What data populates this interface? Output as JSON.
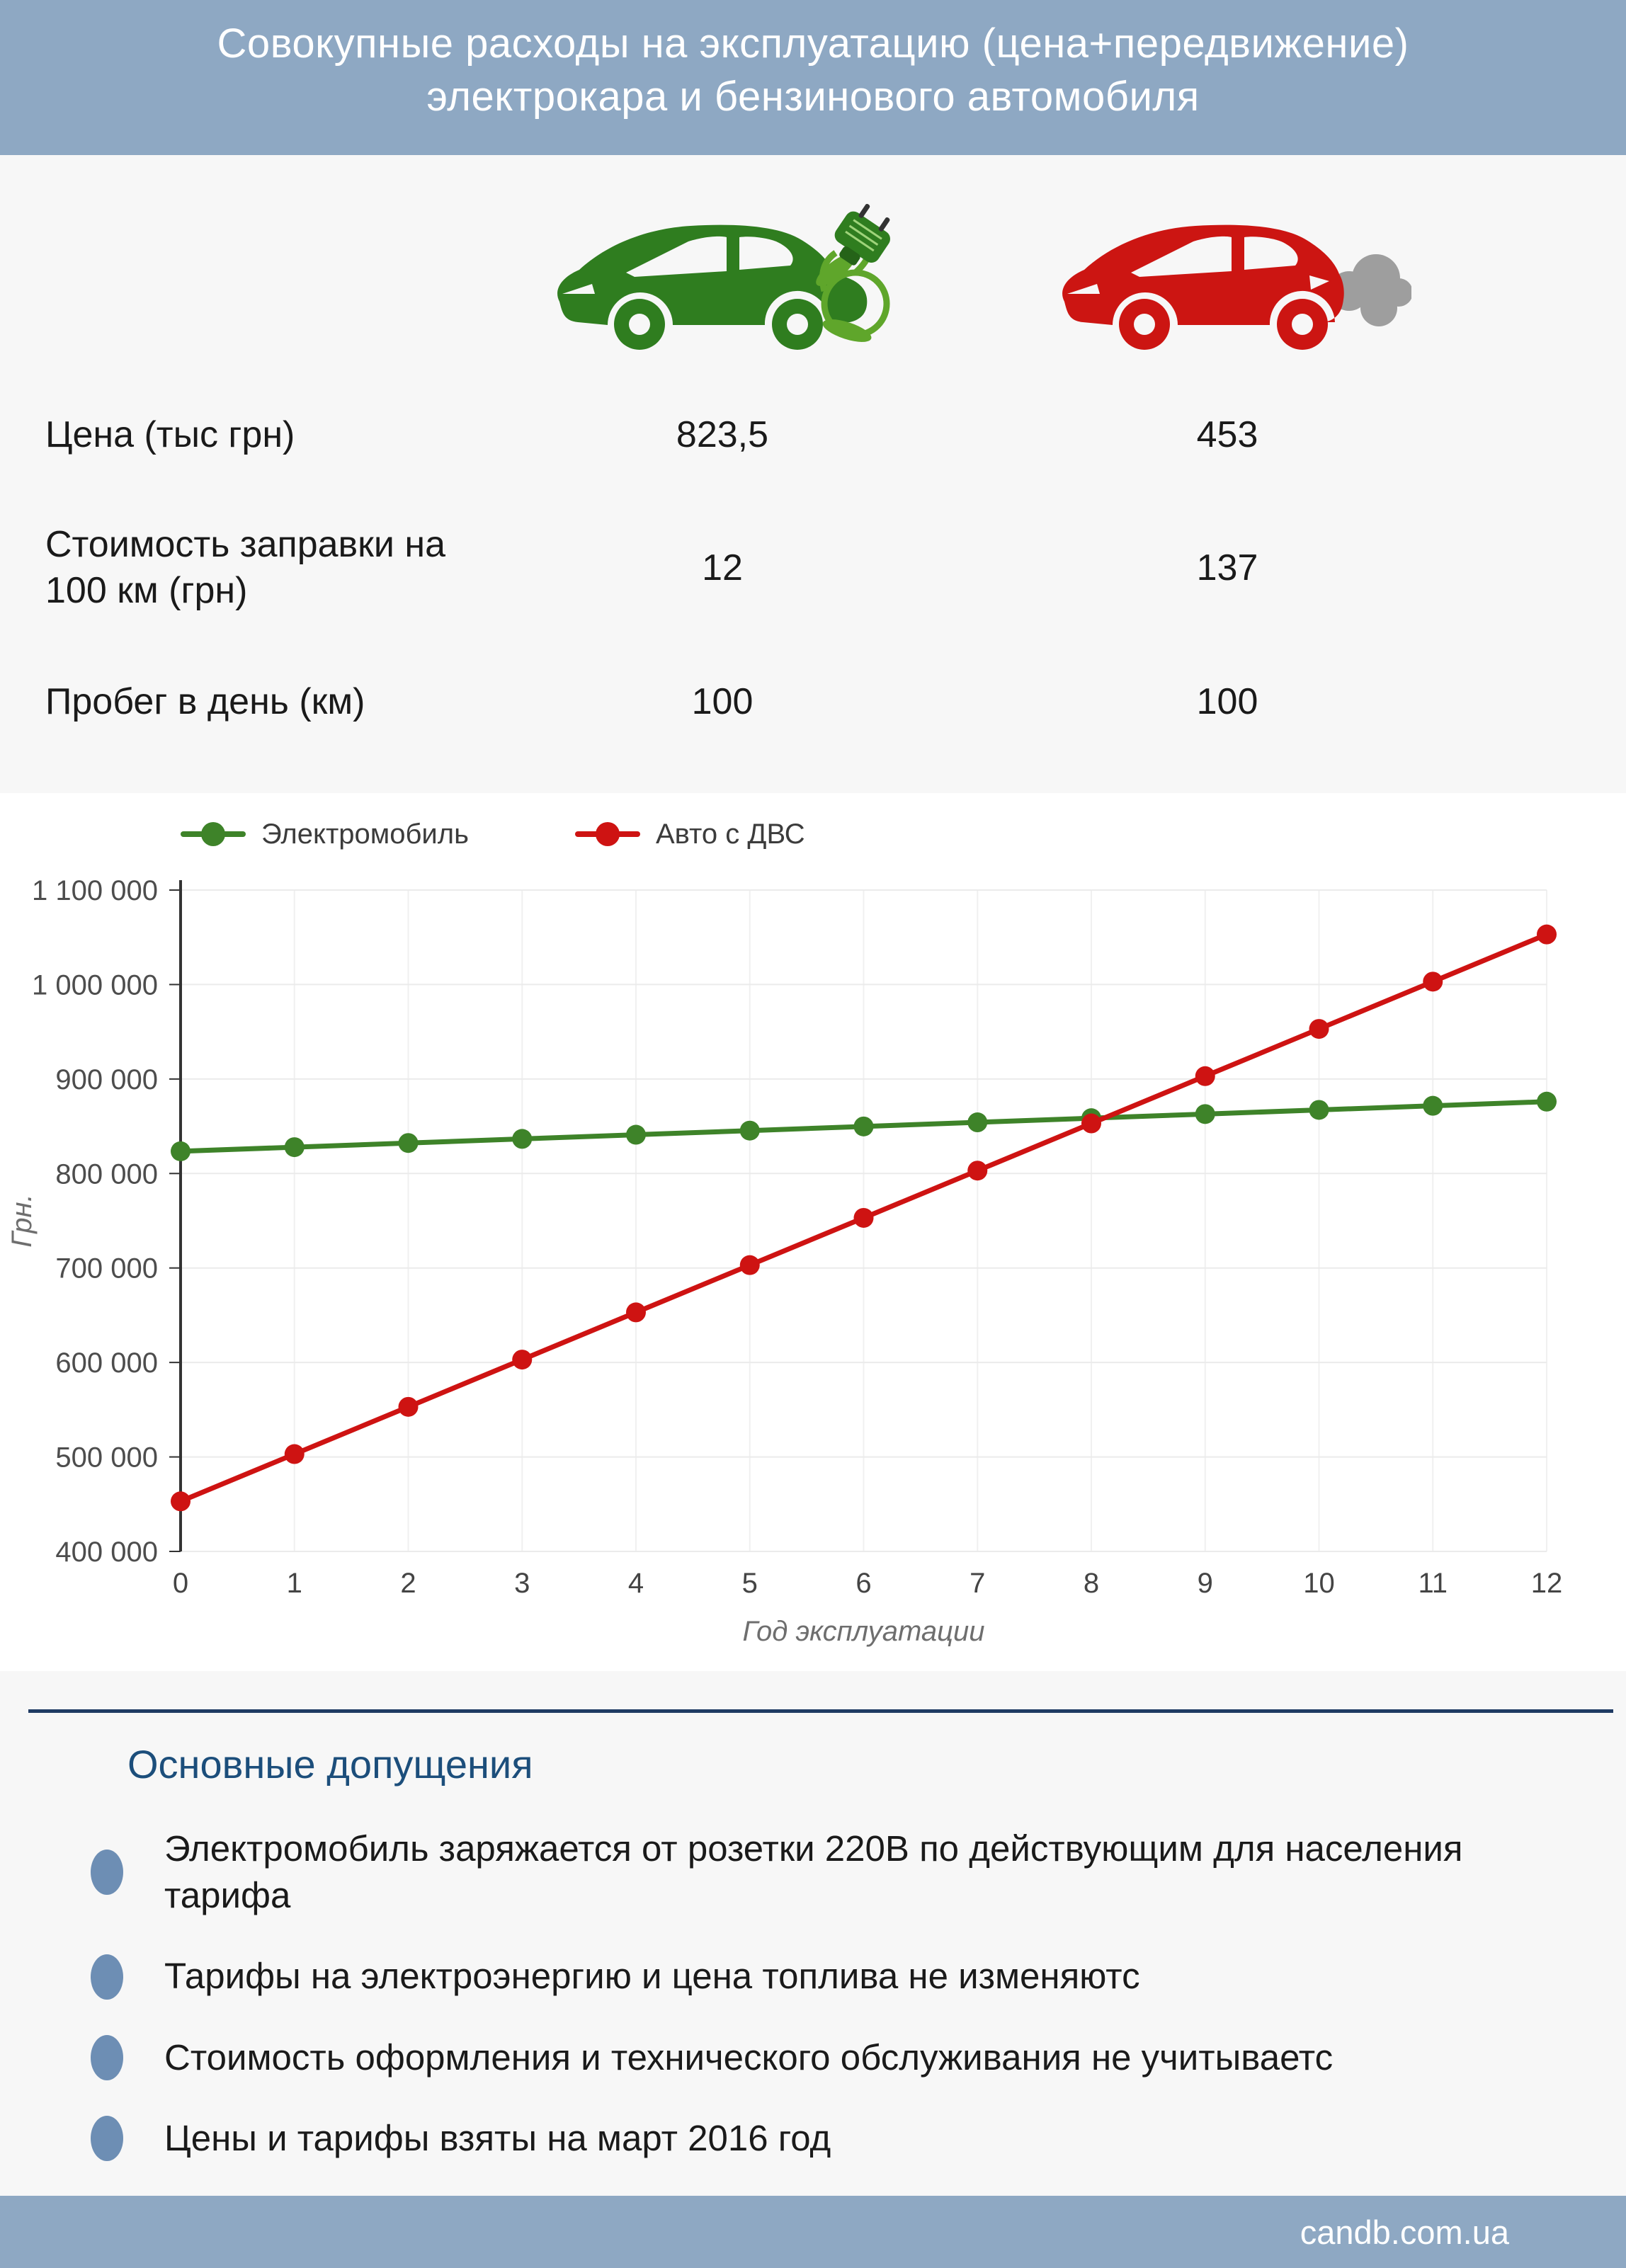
{
  "header": {
    "title_line1": "Совокупные расходы на эксплуатацию (цена+передвижение)",
    "title_line2": "электрокара и бензинового автомобиля"
  },
  "icons": {
    "electric": "electric-car-plug-icon",
    "petrol": "petrol-car-smoke-icon"
  },
  "comparison": {
    "rows": [
      {
        "label": "Цена (тыс грн)",
        "electric": "823,5",
        "petrol": "453"
      },
      {
        "label": "Стоимость заправки на 100 км (грн)",
        "electric": "12",
        "petrol": "137"
      },
      {
        "label": "Пробег в день (км)",
        "electric": "100",
        "petrol": "100"
      }
    ]
  },
  "chart_data": {
    "type": "line",
    "x": [
      0,
      1,
      2,
      3,
      4,
      5,
      6,
      7,
      8,
      9,
      10,
      11,
      12
    ],
    "series": [
      {
        "name": "Электромобиль",
        "color": "#3e8329",
        "values": [
          823500,
          827880,
          832260,
          836640,
          841020,
          845400,
          849780,
          854160,
          858540,
          862920,
          867300,
          871680,
          876060
        ]
      },
      {
        "name": "Авто с ДВС",
        "color": "#ce1312",
        "values": [
          453000,
          503005,
          553010,
          603015,
          653020,
          703025,
          753030,
          803035,
          853040,
          903045,
          953050,
          1003055,
          1053060
        ]
      }
    ],
    "title": "",
    "xlabel": "Год эксплуатации",
    "ylabel": "Грн.",
    "ylim": [
      400000,
      1100000
    ],
    "xlim": [
      0,
      12
    ],
    "y_tick_step": 100000,
    "grid": true,
    "legend_position": "top-left"
  },
  "assumptions": {
    "heading": "Основные допущения",
    "items": [
      "Электромобиль заряжается от розетки 220В по действующим для населения тарифа",
      "Тарифы на электроэнергию и цена топлива не изменяютс",
      "Стоимость оформления и технического обслуживания не учитываетс",
      "Цены и тарифы взяты на март 2016 год"
    ]
  },
  "footer": {
    "site": "candb.com.ua"
  },
  "colors": {
    "band": "#8ea8c3",
    "page_bg": "#f7f7f7",
    "chart_bg": "#ffffff",
    "electric_green": "#3e8329",
    "petrol_red": "#ce1312",
    "car_green": "#2f7d1f",
    "cable_green": "#5fa62b",
    "car_red": "#cc1512",
    "smoke_gray": "#9e9e9e",
    "heading_blue": "#1c4e7b",
    "bullet_blue": "#6d8eb4",
    "divider_navy": "#1f3b63"
  }
}
